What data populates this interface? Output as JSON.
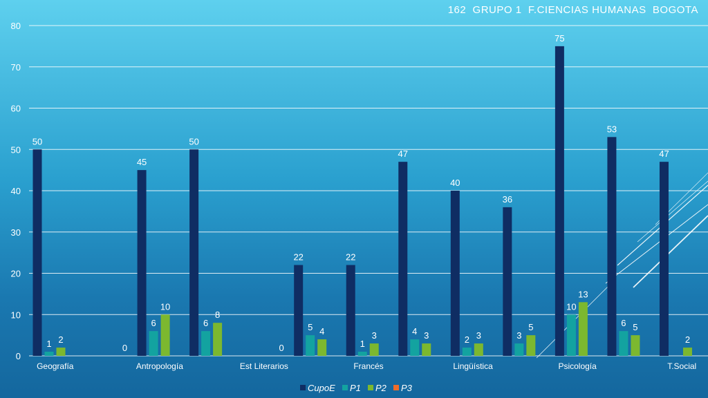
{
  "chart_data": {
    "type": "bar",
    "title": "162  GRUPO 1  F.CIENCIAS HUMANAS  BOGOTA",
    "ylim": [
      0,
      80
    ],
    "yticks": [
      0,
      10,
      20,
      30,
      40,
      50,
      60,
      70,
      80
    ],
    "grid": true,
    "legend_position": "bottom",
    "categories": [
      "Geografía",
      "",
      "Antropología",
      "",
      "Est Literarios",
      "",
      "Francés",
      "",
      "Lingüística",
      "",
      "Psicología",
      "",
      "T.Social"
    ],
    "series": [
      {
        "name": "CupoE",
        "color": "#0f2d63",
        "values": [
          50,
          null,
          45,
          50,
          null,
          22,
          22,
          47,
          40,
          36,
          75,
          53,
          47
        ]
      },
      {
        "name": "P1",
        "color": "#13a3a0",
        "values": [
          1,
          null,
          6,
          6,
          null,
          5,
          1,
          4,
          2,
          3,
          10,
          6,
          null
        ]
      },
      {
        "name": "P2",
        "color": "#7cb82f",
        "values": [
          2,
          null,
          10,
          8,
          null,
          4,
          3,
          3,
          3,
          5,
          13,
          5,
          2
        ]
      },
      {
        "name": "P3",
        "color": "#ef6c2a",
        "values": [
          null,
          0,
          null,
          null,
          0,
          null,
          null,
          null,
          null,
          null,
          null,
          null,
          null
        ]
      }
    ]
  }
}
